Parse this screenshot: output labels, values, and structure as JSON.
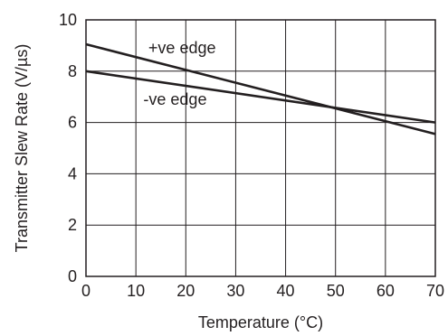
{
  "chart_data": {
    "type": "line",
    "title": "",
    "xlabel": "Temperature (°C)",
    "ylabel": "Transmitter Slew Rate (V/µs)",
    "xlim": [
      0,
      70
    ],
    "ylim": [
      0,
      10
    ],
    "xticks": [
      "0",
      "10",
      "20",
      "30",
      "40",
      "50",
      "60",
      "70"
    ],
    "yticks": [
      "0",
      "2",
      "4",
      "6",
      "8",
      "10"
    ],
    "grid": true,
    "series": [
      {
        "name": "+ve edge",
        "x": [
          0,
          70
        ],
        "y": [
          9.05,
          5.55
        ]
      },
      {
        "name": "-ve edge",
        "x": [
          0,
          70
        ],
        "y": [
          8.0,
          6.0
        ]
      }
    ],
    "annotations": [
      {
        "text": "+ve edge",
        "x": 12.5,
        "y": 8.9
      },
      {
        "text": "-ve edge",
        "x": 11.5,
        "y": 6.9
      }
    ],
    "line_color": "#231f20"
  }
}
